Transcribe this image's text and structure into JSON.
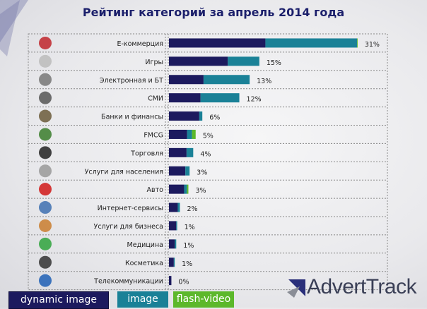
{
  "chart_data": {
    "type": "bar",
    "stacked": true,
    "orientation": "horizontal",
    "title": "Рейтинг категорий за апрель 2014 года",
    "categories": [
      "Е-коммерция",
      "Игры",
      "Электронная и БТ",
      "СМИ",
      "Банки и финансы",
      "FMCG",
      "Торговля",
      "Услуги для населения",
      "Авто",
      "Интернет-сервисы",
      "Услуги для бизнеса",
      "Медицина",
      "Косметика",
      "Телекоммуникации"
    ],
    "icons": [
      "shopping-cart-icon",
      "gamepad-icon",
      "appliance-icon",
      "newspaper-icon",
      "bank-icon",
      "grocery-icon",
      "barcode-icon",
      "satellite-dish-icon",
      "car-icon",
      "pin-icon",
      "handshake-icon",
      "medical-cross-icon",
      "cosmetics-icon",
      "globe-icon"
    ],
    "series": [
      {
        "name": "dynamic image",
        "color": "#1c1a5e",
        "values": [
          15.9,
          9.7,
          5.7,
          5.2,
          5.0,
          3.0,
          2.9,
          2.7,
          2.5,
          1.45,
          1.2,
          0.97,
          0.8,
          0.4
        ]
      },
      {
        "name": "image",
        "color": "#1a8197",
        "values": [
          15.1,
          5.2,
          7.6,
          6.4,
          0.5,
          0.8,
          1.1,
          0.7,
          0.45,
          0.35,
          0.15,
          0.23,
          0.15,
          0
        ]
      },
      {
        "name": "flash-video",
        "color": "#5cb82b",
        "values": [
          0.1,
          0,
          0,
          0,
          0,
          0.6,
          0,
          0,
          0.25,
          0,
          0,
          0,
          0,
          0
        ]
      }
    ],
    "data_labels": [
      "31%",
      "15%",
      "13%",
      "12%",
      "6%",
      "5%",
      "4%",
      "3%",
      "3%",
      "2%",
      "1%",
      "1%",
      "1%",
      "0%"
    ],
    "xlim": [
      0,
      31
    ],
    "grid": true,
    "legend_position": "bottom-left"
  },
  "brand": {
    "logo_text": "AdvertTrack"
  }
}
